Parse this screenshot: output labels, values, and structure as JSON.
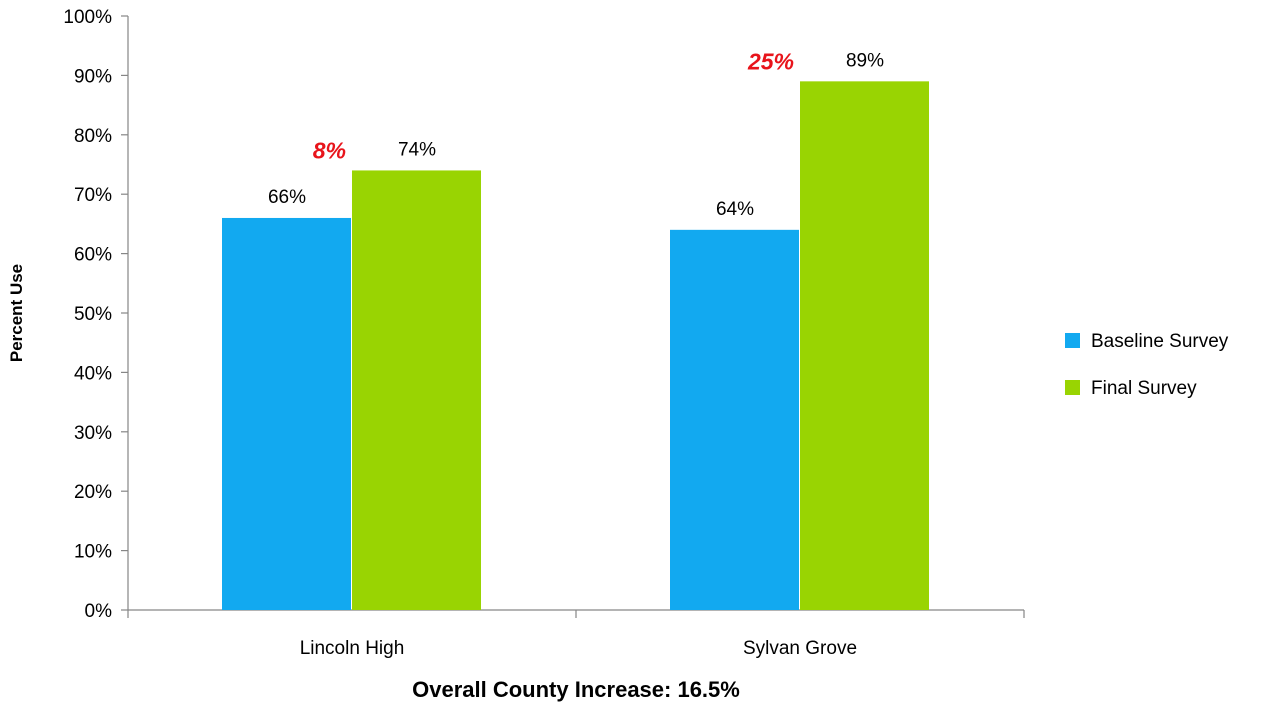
{
  "chart_data": {
    "type": "bar",
    "categories": [
      "Lincoln High",
      "Sylvan Grove"
    ],
    "series": [
      {
        "name": "Baseline Survey",
        "values": [
          66,
          64
        ],
        "labels": [
          "66%",
          "64%"
        ],
        "color": "#12a9f0"
      },
      {
        "name": "Final Survey",
        "values": [
          74,
          89
        ],
        "labels": [
          "74%",
          "89%"
        ],
        "color": "#99d402"
      }
    ],
    "annotations": [
      "8%",
      "25%"
    ],
    "annotation_color": "#e8141b",
    "xlabel": "Overall County Increase: 16.5%",
    "ylabel": "Percent Use",
    "ylim": [
      0,
      100
    ],
    "yticks": [
      0,
      10,
      20,
      30,
      40,
      50,
      60,
      70,
      80,
      90,
      100
    ],
    "ytick_suffix": "%",
    "grid": false,
    "legend_position": "right"
  }
}
